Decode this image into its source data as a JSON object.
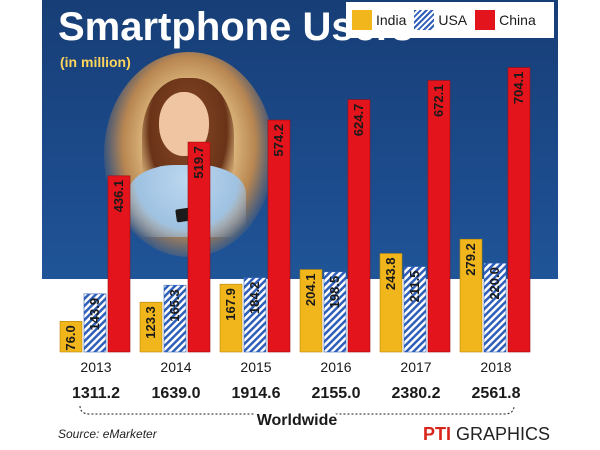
{
  "chart_data": {
    "type": "bar",
    "title": "Smartphone Users",
    "subtitle": "(in million)",
    "categories": [
      "2013",
      "2014",
      "2015",
      "2016",
      "2017",
      "2018"
    ],
    "series": [
      {
        "name": "India",
        "values": [
          76.0,
          123.3,
          167.9,
          204.1,
          243.8,
          279.2
        ],
        "color": "#f0b61c",
        "labels": [
          "76.0",
          "123.3",
          "167.9",
          "204.1",
          "243.8",
          "279.2"
        ]
      },
      {
        "name": "USA",
        "values": [
          143.9,
          165.3,
          184.2,
          198.5,
          211.5,
          220.0
        ],
        "color": "#2f5fb8",
        "labels": [
          "143.9",
          "165.3",
          "184.2",
          "198.5",
          "211.5",
          "220.0"
        ]
      },
      {
        "name": "China",
        "values": [
          436.1,
          519.7,
          574.2,
          624.7,
          672.1,
          704.1
        ],
        "color": "#e3141b",
        "labels": [
          "436.1",
          "519.7",
          "574.2",
          "624.7",
          "672.1",
          "704.1"
        ]
      }
    ],
    "worldwide": {
      "label": "Worldwide",
      "values": [
        1311.2,
        1639.0,
        1914.6,
        2155.0,
        2380.2,
        2561.8
      ],
      "labels": [
        "1311.2",
        "1639.0",
        "1914.6",
        "2155.0",
        "2380.2",
        "2561.8"
      ]
    },
    "ylim": [
      0,
      760
    ],
    "legend_position": "top-right",
    "grid": false,
    "source": "Source: eMarketer",
    "credit_logo": "PTI",
    "credit_text": "GRAPHICS"
  }
}
